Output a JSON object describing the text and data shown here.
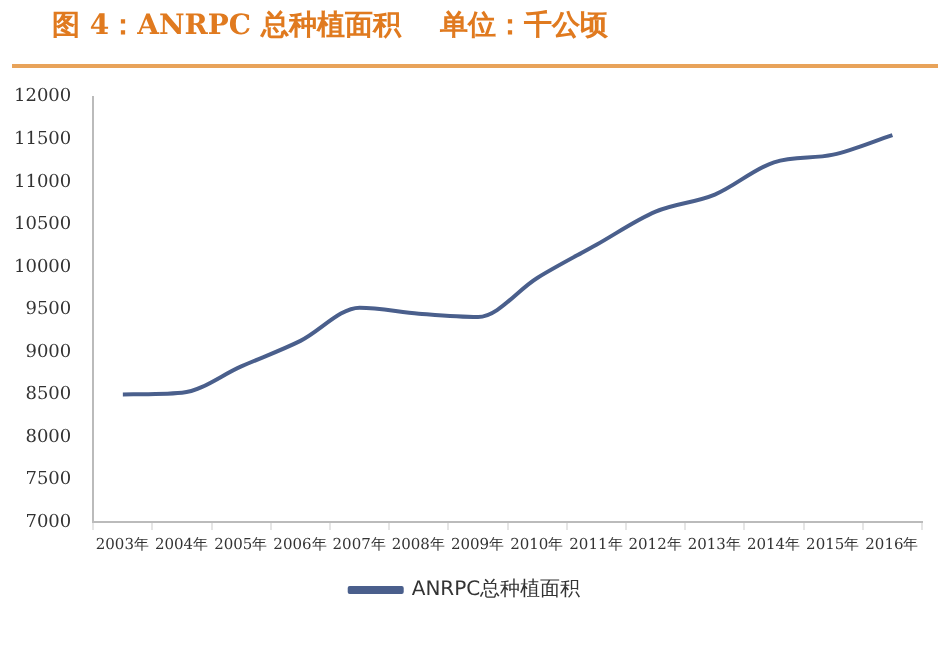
{
  "chart_data": {
    "type": "line",
    "title": "图 4：ANRPC 总种植面积    单位：千公顷",
    "categories": [
      "2003年",
      "2004年",
      "2005年",
      "2006年",
      "2007年",
      "2008年",
      "2009年",
      "2010年",
      "2011年",
      "2012年",
      "2013年",
      "2014年",
      "2015年",
      "2016年"
    ],
    "series": [
      {
        "name": "ANRPC总种植面积",
        "color": "#4a5f8c",
        "values": [
          8500,
          8520,
          8830,
          9130,
          9520,
          9450,
          9410,
          9870,
          10260,
          10650,
          10850,
          11230,
          11320,
          11550
        ]
      }
    ],
    "ylim": [
      7000,
      12000
    ],
    "yticks": [
      7000,
      7500,
      8000,
      8500,
      9000,
      9500,
      10000,
      10500,
      11000,
      11500,
      12000
    ],
    "grid": false,
    "legend": "bottom",
    "marker": "none",
    "line_style": "solid"
  }
}
